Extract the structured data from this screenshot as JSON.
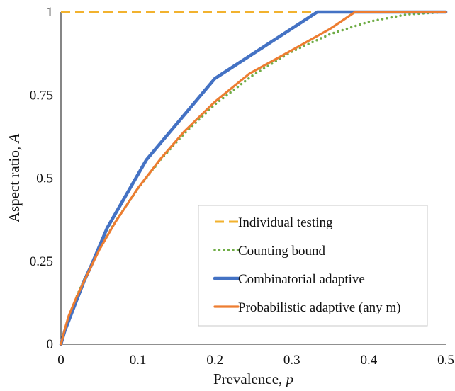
{
  "chart_data": {
    "type": "line",
    "title": "",
    "xlabel": "Prevalence, ",
    "xlabel_var": "p",
    "ylabel": "Aspect ratio, ",
    "ylabel_var": "A",
    "xlim": [
      0,
      0.5
    ],
    "ylim": [
      0,
      1
    ],
    "x_ticks": [
      0,
      0.1,
      0.2,
      0.3,
      0.4,
      0.5
    ],
    "x_tick_labels": [
      "0",
      "0.1",
      "0.2",
      "0.3",
      "0.4",
      "0.5"
    ],
    "y_ticks": [
      0,
      0.25,
      0.5,
      0.75,
      1
    ],
    "y_tick_labels": [
      "0",
      "0.25",
      "0.5",
      "0.75",
      "1"
    ],
    "grid": false,
    "legend_position": "bottom-right",
    "series": [
      {
        "name": "Individual testing",
        "color": "#F2B22E",
        "style": "dashed",
        "x": [
          0,
          0.5
        ],
        "y": [
          1,
          1
        ]
      },
      {
        "name": "Counting bound",
        "color": "#70AD47",
        "style": "dotted",
        "x": [
          0,
          0.01,
          0.02,
          0.03,
          0.05,
          0.07,
          0.1,
          0.13,
          0.16,
          0.2,
          0.25,
          0.3,
          0.35,
          0.4,
          0.45,
          0.5
        ],
        "y": [
          0,
          0.081,
          0.141,
          0.194,
          0.286,
          0.366,
          0.469,
          0.557,
          0.634,
          0.722,
          0.811,
          0.881,
          0.934,
          0.971,
          0.993,
          1.0
        ]
      },
      {
        "name": "Combinatorial adaptive",
        "color": "#4472C4",
        "style": "solid",
        "x": [
          0,
          0.005,
          0.01,
          0.02,
          0.03,
          0.04,
          0.06,
          0.111,
          0.2,
          0.333,
          0.5
        ],
        "y": [
          0,
          0.04,
          0.07,
          0.13,
          0.19,
          0.24,
          0.35,
          0.555,
          0.8,
          1.0,
          1.0
        ]
      },
      {
        "name": "Probabilistic adaptive (any m)",
        "color": "#ED7D31",
        "style": "solid",
        "x": [
          0,
          0.005,
          0.01,
          0.02,
          0.03,
          0.05,
          0.07,
          0.1,
          0.13,
          0.16,
          0.2,
          0.245,
          0.3,
          0.35,
          0.382,
          0.5
        ],
        "y": [
          0,
          0.045,
          0.085,
          0.14,
          0.19,
          0.285,
          0.365,
          0.47,
          0.56,
          0.64,
          0.73,
          0.815,
          0.885,
          0.95,
          1.0,
          1.0
        ]
      }
    ]
  }
}
